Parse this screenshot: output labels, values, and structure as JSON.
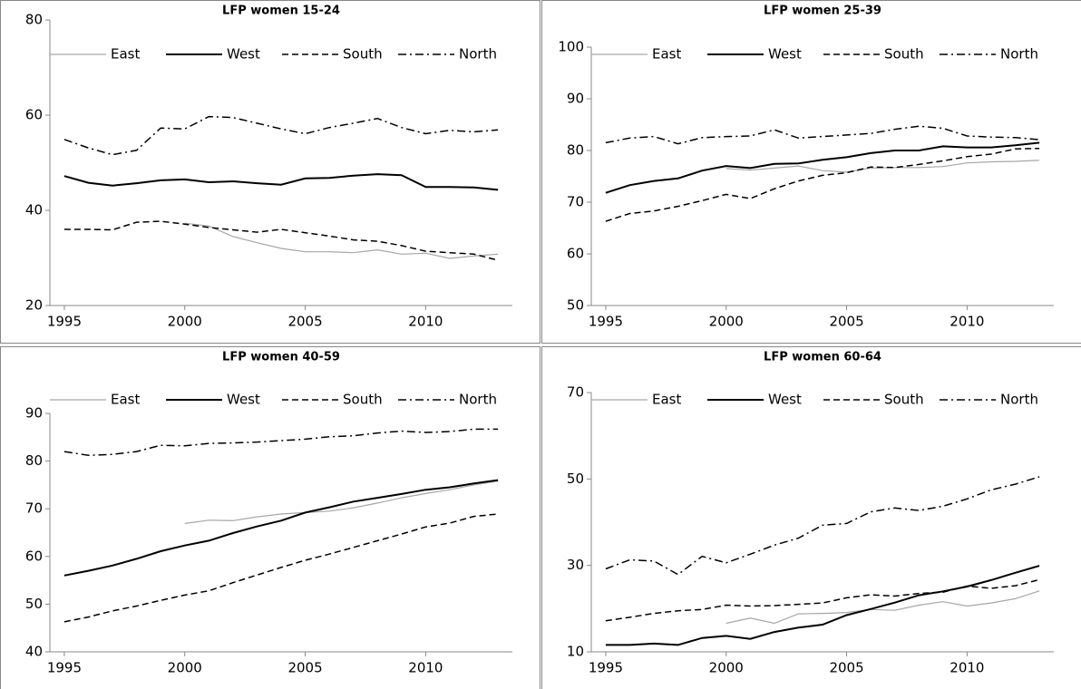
{
  "chart_data": [
    {
      "type": "line",
      "title": "LFP women 15-24",
      "x": [
        1995,
        1996,
        1997,
        1998,
        1999,
        2000,
        2001,
        2002,
        2003,
        2004,
        2005,
        2006,
        2007,
        2008,
        2009,
        2010,
        2011,
        2012,
        2013
      ],
      "xlim": [
        1994.4,
        2013.6
      ],
      "xticks": [
        1995,
        2000,
        2005,
        2010
      ],
      "ylim": [
        20,
        80
      ],
      "yticks": [
        20,
        40,
        60,
        80
      ],
      "series": [
        {
          "name": "East",
          "color": "#a6a6a6",
          "dash": "solid",
          "linewidth": 1.2,
          "values": [
            null,
            null,
            null,
            null,
            null,
            37.3,
            36.7,
            34.5,
            33.2,
            32,
            31.3,
            31.3,
            31.1,
            31.7,
            30.8,
            31,
            29.9,
            30.4,
            30.8
          ]
        },
        {
          "name": "West",
          "color": "#000000",
          "dash": "solid",
          "linewidth": 2,
          "values": [
            47.2,
            45.8,
            45.2,
            45.7,
            46.3,
            46.5,
            45.9,
            46.1,
            45.7,
            45.4,
            46.7,
            46.8,
            47.3,
            47.6,
            47.4,
            44.9,
            44.9,
            44.8,
            44.3
          ]
        },
        {
          "name": "South",
          "color": "#000000",
          "dash": "dashed",
          "linewidth": 1.5,
          "values": [
            36,
            36,
            35.9,
            37.5,
            37.7,
            37.1,
            36.4,
            35.9,
            35.4,
            36,
            35.3,
            34.6,
            33.8,
            33.5,
            32.6,
            31.4,
            31.1,
            30.8,
            29.5
          ]
        },
        {
          "name": "North",
          "color": "#000000",
          "dash": "dashdot",
          "linewidth": 1.5,
          "values": [
            54.9,
            53.1,
            51.7,
            52.6,
            57.3,
            57.1,
            59.7,
            59.5,
            58.3,
            57.1,
            56.1,
            57.4,
            58.3,
            59.3,
            57.4,
            56.1,
            56.8,
            56.5,
            56.9
          ]
        }
      ]
    },
    {
      "type": "line",
      "title": "LFP women 25-39",
      "x": [
        1995,
        1996,
        1997,
        1998,
        1999,
        2000,
        2001,
        2002,
        2003,
        2004,
        2005,
        2006,
        2007,
        2008,
        2009,
        2010,
        2011,
        2012,
        2013
      ],
      "xlim": [
        1994.4,
        2013.6
      ],
      "xticks": [
        1995,
        2000,
        2005,
        2010
      ],
      "ylim": [
        50,
        100
      ],
      "yticks": [
        50,
        60,
        70,
        80,
        90,
        100
      ],
      "series": [
        {
          "name": "East",
          "color": "#a6a6a6",
          "dash": "solid",
          "linewidth": 1.2,
          "values": [
            null,
            null,
            null,
            null,
            null,
            76.5,
            76.2,
            76.6,
            77,
            76.1,
            75.8,
            76.6,
            76.7,
            76.7,
            76.9,
            77.6,
            77.8,
            77.9,
            78.1
          ]
        },
        {
          "name": "West",
          "color": "#000000",
          "dash": "solid",
          "linewidth": 2,
          "values": [
            71.8,
            73.3,
            74.1,
            74.6,
            76.1,
            77,
            76.6,
            77.4,
            77.5,
            78.2,
            78.7,
            79.5,
            80,
            80,
            80.8,
            80.6,
            80.6,
            81,
            81.5
          ]
        },
        {
          "name": "South",
          "color": "#000000",
          "dash": "dashed",
          "linewidth": 1.5,
          "values": [
            66.3,
            67.8,
            68.3,
            69.2,
            70.3,
            71.5,
            70.7,
            72.6,
            74.1,
            75.2,
            75.7,
            76.8,
            76.7,
            77.3,
            78,
            78.8,
            79.3,
            80.3,
            80.4
          ]
        },
        {
          "name": "North",
          "color": "#000000",
          "dash": "dashdot",
          "linewidth": 1.5,
          "values": [
            81.5,
            82.4,
            82.7,
            81.3,
            82.5,
            82.7,
            82.8,
            84,
            82.4,
            82.7,
            83,
            83.3,
            84.1,
            84.7,
            84.3,
            82.8,
            82.6,
            82.5,
            82.1
          ]
        }
      ]
    },
    {
      "type": "line",
      "title": "LFP women 40-59",
      "x": [
        1995,
        1996,
        1997,
        1998,
        1999,
        2000,
        2001,
        2002,
        2003,
        2004,
        2005,
        2006,
        2007,
        2008,
        2009,
        2010,
        2011,
        2012,
        2013
      ],
      "xlim": [
        1994.4,
        2013.6
      ],
      "xticks": [
        1995,
        2000,
        2005,
        2010
      ],
      "ylim": [
        40,
        90
      ],
      "yticks": [
        40,
        50,
        60,
        70,
        80,
        90
      ],
      "series": [
        {
          "name": "East",
          "color": "#a6a6a6",
          "dash": "solid",
          "linewidth": 1.2,
          "values": [
            null,
            null,
            null,
            null,
            null,
            66.9,
            67.6,
            67.5,
            68.3,
            68.9,
            69.2,
            69.5,
            70.2,
            71.2,
            72.3,
            73.2,
            74,
            75,
            75.8
          ]
        },
        {
          "name": "West",
          "color": "#000000",
          "dash": "solid",
          "linewidth": 2,
          "values": [
            56,
            57,
            58.1,
            59.5,
            61.1,
            62.3,
            63.3,
            64.9,
            66.3,
            67.5,
            69.2,
            70.3,
            71.5,
            72.3,
            73.1,
            74,
            74.5,
            75.3,
            76
          ]
        },
        {
          "name": "South",
          "color": "#000000",
          "dash": "dashed",
          "linewidth": 1.5,
          "values": [
            46.3,
            47.3,
            48.6,
            49.6,
            50.8,
            51.9,
            52.8,
            54.5,
            56.1,
            57.7,
            59.2,
            60.5,
            61.9,
            63.3,
            64.7,
            66.2,
            67,
            68.4,
            68.9
          ]
        },
        {
          "name": "North",
          "color": "#000000",
          "dash": "dashdot",
          "linewidth": 1.5,
          "values": [
            82,
            81.2,
            81.4,
            82,
            83.3,
            83.2,
            83.7,
            83.8,
            84,
            84.3,
            84.6,
            85.1,
            85.3,
            85.9,
            86.3,
            86,
            86.2,
            86.7,
            86.7
          ]
        }
      ]
    },
    {
      "type": "line",
      "title": "LFP women 60-64",
      "x": [
        1995,
        1996,
        1997,
        1998,
        1999,
        2000,
        2001,
        2002,
        2003,
        2004,
        2005,
        2006,
        2007,
        2008,
        2009,
        2010,
        2011,
        2012,
        2013
      ],
      "xlim": [
        1994.4,
        2013.6
      ],
      "xticks": [
        1995,
        2000,
        2005,
        2010
      ],
      "ylim": [
        10,
        70
      ],
      "yticks": [
        10,
        30,
        50,
        70
      ],
      "series": [
        {
          "name": "East",
          "color": "#a6a6a6",
          "dash": "solid",
          "linewidth": 1.2,
          "values": [
            null,
            null,
            null,
            null,
            null,
            16.6,
            17.8,
            16.6,
            18.8,
            18.9,
            19.1,
            19.8,
            19.6,
            20.8,
            21.6,
            20.6,
            21.3,
            22.3,
            24.1
          ]
        },
        {
          "name": "West",
          "color": "#000000",
          "dash": "solid",
          "linewidth": 2,
          "values": [
            11.6,
            11.6,
            11.9,
            11.6,
            13.2,
            13.7,
            13,
            14.6,
            15.6,
            16.3,
            18.5,
            19.9,
            21.4,
            23.1,
            24,
            25.1,
            26.6,
            28.3,
            29.9
          ]
        },
        {
          "name": "South",
          "color": "#000000",
          "dash": "dashed",
          "linewidth": 1.5,
          "values": [
            17.2,
            18,
            18.9,
            19.5,
            19.8,
            20.8,
            20.6,
            20.7,
            21,
            21.3,
            22.5,
            23.2,
            22.9,
            23.5,
            23.8,
            25.2,
            24.7,
            25.3,
            26.7
          ]
        },
        {
          "name": "North",
          "color": "#000000",
          "dash": "dashdot",
          "linewidth": 1.5,
          "values": [
            29.2,
            31.3,
            31,
            27.9,
            32.1,
            30.6,
            32.6,
            34.7,
            36.3,
            39.3,
            39.7,
            42.4,
            43.3,
            42.7,
            43.7,
            45.4,
            47.5,
            48.8,
            50.5
          ]
        }
      ]
    }
  ]
}
